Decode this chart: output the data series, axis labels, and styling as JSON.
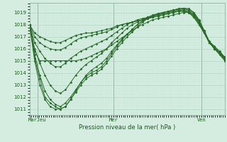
{
  "title": "",
  "xlabel": "Pression niveau de la mer( hPa )",
  "ylabel": "",
  "bg_color": "#d4ede0",
  "plot_bg_color": "#d4ede0",
  "grid_major_color": "#b8d8c8",
  "grid_minor_color": "#c8e8d8",
  "line_color": "#2a6b2a",
  "marker_color": "#2a6b2a",
  "ylim": [
    1010.5,
    1019.8
  ],
  "yticks": [
    1011,
    1012,
    1013,
    1014,
    1015,
    1016,
    1017,
    1018,
    1019
  ],
  "xtick_labels": [
    "MarJeu",
    "Mer",
    "Ven"
  ],
  "xtick_positions": [
    0.04,
    0.43,
    0.88
  ],
  "series": [
    [
      1018.0,
      1015.8,
      1015.0,
      1015.0,
      1015.0,
      1015.0,
      1015.0,
      1015.0,
      1015.0,
      1015.0,
      1015.1,
      1015.2,
      1015.4,
      1015.6,
      1015.8,
      1016.0,
      1016.3,
      1016.6,
      1016.9,
      1017.2,
      1017.5,
      1017.8,
      1018.0,
      1018.2,
      1018.4,
      1018.5,
      1018.6,
      1018.7,
      1018.8,
      1018.9,
      1019.0,
      1019.0,
      1018.8,
      1018.2,
      1017.4,
      1016.5,
      1016.0,
      1015.5,
      1015.0
    ],
    [
      1018.0,
      1015.2,
      1013.5,
      1012.0,
      1011.5,
      1011.2,
      1011.0,
      1011.2,
      1011.8,
      1012.5,
      1013.2,
      1013.8,
      1014.2,
      1014.5,
      1014.8,
      1015.2,
      1015.8,
      1016.3,
      1016.8,
      1017.2,
      1017.6,
      1018.0,
      1018.3,
      1018.6,
      1018.8,
      1018.9,
      1019.0,
      1019.1,
      1019.2,
      1019.3,
      1019.35,
      1019.3,
      1019.0,
      1018.4,
      1017.5,
      1016.6,
      1016.2,
      1015.8,
      1015.3
    ],
    [
      1018.0,
      1015.0,
      1013.0,
      1011.8,
      1011.2,
      1011.0,
      1011.0,
      1011.2,
      1011.8,
      1012.4,
      1013.0,
      1013.5,
      1013.8,
      1014.0,
      1014.3,
      1014.8,
      1015.4,
      1016.0,
      1016.5,
      1017.0,
      1017.4,
      1017.8,
      1018.2,
      1018.5,
      1018.7,
      1018.9,
      1019.0,
      1019.1,
      1019.2,
      1019.3,
      1019.35,
      1019.3,
      1019.0,
      1018.3,
      1017.4,
      1016.5,
      1016.1,
      1015.7,
      1015.2
    ],
    [
      1018.0,
      1015.5,
      1013.8,
      1012.5,
      1011.8,
      1011.4,
      1011.2,
      1011.5,
      1012.0,
      1012.6,
      1013.2,
      1013.7,
      1014.0,
      1014.2,
      1014.5,
      1015.0,
      1015.6,
      1016.2,
      1016.7,
      1017.2,
      1017.6,
      1018.0,
      1018.3,
      1018.5,
      1018.7,
      1018.9,
      1019.0,
      1019.1,
      1019.2,
      1019.3,
      1019.3,
      1019.2,
      1018.9,
      1018.3,
      1017.5,
      1016.6,
      1016.1,
      1015.7,
      1015.2
    ],
    [
      1018.0,
      1016.0,
      1014.8,
      1013.8,
      1013.0,
      1012.5,
      1012.3,
      1012.6,
      1013.2,
      1013.8,
      1014.3,
      1014.7,
      1015.0,
      1015.3,
      1015.6,
      1016.0,
      1016.5,
      1016.9,
      1017.3,
      1017.7,
      1018.0,
      1018.2,
      1018.4,
      1018.6,
      1018.7,
      1018.8,
      1018.9,
      1019.0,
      1019.1,
      1019.2,
      1019.2,
      1019.1,
      1018.8,
      1018.2,
      1017.4,
      1016.5,
      1016.0,
      1015.6,
      1015.1
    ],
    [
      1018.0,
      1016.5,
      1015.8,
      1015.2,
      1014.8,
      1014.5,
      1014.5,
      1014.8,
      1015.2,
      1015.5,
      1015.8,
      1016.0,
      1016.2,
      1016.4,
      1016.6,
      1016.8,
      1017.1,
      1017.4,
      1017.7,
      1018.0,
      1018.2,
      1018.4,
      1018.5,
      1018.6,
      1018.7,
      1018.8,
      1018.9,
      1019.0,
      1019.1,
      1019.2,
      1019.2,
      1019.1,
      1018.7,
      1018.1,
      1017.3,
      1016.5,
      1016.0,
      1015.6,
      1015.1
    ],
    [
      1018.0,
      1017.0,
      1016.5,
      1016.2,
      1016.0,
      1015.9,
      1015.9,
      1016.1,
      1016.4,
      1016.7,
      1016.9,
      1017.0,
      1017.1,
      1017.2,
      1017.3,
      1017.4,
      1017.6,
      1017.8,
      1018.0,
      1018.1,
      1018.2,
      1018.3,
      1018.4,
      1018.5,
      1018.6,
      1018.7,
      1018.8,
      1018.9,
      1019.0,
      1019.1,
      1019.1,
      1019.0,
      1018.6,
      1018.0,
      1017.3,
      1016.5,
      1016.0,
      1015.6,
      1015.2
    ],
    [
      1018.0,
      1017.3,
      1017.0,
      1016.8,
      1016.6,
      1016.5,
      1016.5,
      1016.7,
      1016.9,
      1017.1,
      1017.2,
      1017.3,
      1017.3,
      1017.4,
      1017.5,
      1017.6,
      1017.7,
      1017.9,
      1018.0,
      1018.1,
      1018.2,
      1018.3,
      1018.4,
      1018.5,
      1018.6,
      1018.7,
      1018.8,
      1018.9,
      1019.0,
      1019.1,
      1019.1,
      1019.0,
      1018.6,
      1018.0,
      1017.3,
      1016.5,
      1016.1,
      1015.7,
      1015.3
    ]
  ]
}
